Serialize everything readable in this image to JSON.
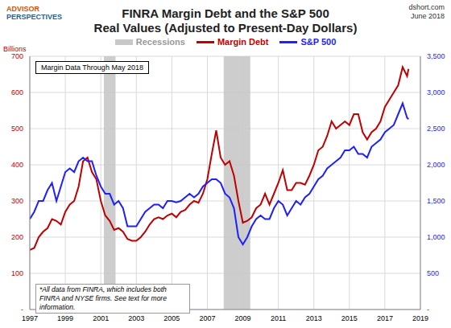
{
  "chart_data": {
    "type": "line",
    "title": "FINRA Margin Debt and the S&P 500",
    "subtitle": "Real Values (Adjusted to Present-Day Dollars)",
    "logo": [
      "ADVISOR",
      "PERSPECTIVES"
    ],
    "source": "dshort.com",
    "date": "June 2018",
    "y_label": "Billions",
    "annotations": [
      "Margin Data Through May 2018",
      "*All data from FINRA, which includes both FINRA and NYSE firms. See text for more information."
    ],
    "recession_label": "Recessions",
    "recessions": [
      [
        2001.17,
        2001.83
      ],
      [
        2007.92,
        2009.42
      ]
    ],
    "x": [
      1997,
      1997.25,
      1997.5,
      1997.75,
      1998,
      1998.25,
      1998.5,
      1998.75,
      1999,
      1999.25,
      1999.5,
      1999.75,
      2000,
      2000.25,
      2000.5,
      2000.75,
      2001,
      2001.25,
      2001.5,
      2001.75,
      2002,
      2002.25,
      2002.5,
      2002.75,
      2003,
      2003.25,
      2003.5,
      2003.75,
      2004,
      2004.25,
      2004.5,
      2004.75,
      2005,
      2005.25,
      2005.5,
      2005.75,
      2006,
      2006.25,
      2006.5,
      2006.75,
      2007,
      2007.25,
      2007.5,
      2007.75,
      2008,
      2008.25,
      2008.5,
      2008.75,
      2009,
      2009.25,
      2009.5,
      2009.75,
      2010,
      2010.25,
      2010.5,
      2010.75,
      2011,
      2011.25,
      2011.5,
      2011.75,
      2012,
      2012.25,
      2012.5,
      2012.75,
      2013,
      2013.25,
      2013.5,
      2013.75,
      2014,
      2014.25,
      2014.5,
      2014.75,
      2015,
      2015.25,
      2015.5,
      2015.75,
      2016,
      2016.25,
      2016.5,
      2016.75,
      2017,
      2017.25,
      2017.5,
      2017.75,
      2018,
      2018.25,
      2018.33
    ],
    "series": [
      {
        "name": "Margin Debt",
        "color": "#c00000",
        "values": [
          165,
          170,
          200,
          215,
          225,
          250,
          245,
          235,
          270,
          290,
          300,
          340,
          410,
          420,
          380,
          360,
          300,
          260,
          245,
          220,
          225,
          215,
          195,
          190,
          190,
          200,
          215,
          235,
          250,
          255,
          250,
          260,
          265,
          255,
          270,
          275,
          290,
          300,
          295,
          320,
          360,
          430,
          495,
          420,
          400,
          410,
          370,
          300,
          240,
          245,
          255,
          280,
          290,
          320,
          290,
          320,
          350,
          385,
          330,
          330,
          350,
          350,
          345,
          370,
          400,
          440,
          450,
          480,
          520,
          500,
          510,
          520,
          510,
          540,
          540,
          490,
          470,
          490,
          500,
          520,
          560,
          580,
          600,
          620,
          670,
          645,
          665
        ]
      },
      {
        "name": "S&P 500",
        "color": "#1f1fff",
        "axis": "y2",
        "values": [
          1250,
          1350,
          1500,
          1500,
          1650,
          1750,
          1500,
          1700,
          1900,
          1950,
          1900,
          2050,
          2100,
          2050,
          2050,
          1850,
          1700,
          1600,
          1600,
          1450,
          1500,
          1400,
          1150,
          1150,
          1150,
          1250,
          1350,
          1400,
          1450,
          1450,
          1400,
          1500,
          1500,
          1480,
          1500,
          1550,
          1600,
          1550,
          1600,
          1700,
          1750,
          1800,
          1800,
          1750,
          1600,
          1550,
          1400,
          1000,
          900,
          1000,
          1150,
          1250,
          1300,
          1250,
          1250,
          1400,
          1500,
          1450,
          1300,
          1400,
          1500,
          1450,
          1550,
          1600,
          1700,
          1800,
          1850,
          1950,
          2000,
          2050,
          2100,
          2200,
          2200,
          2250,
          2150,
          2150,
          2100,
          2250,
          2300,
          2350,
          2450,
          2500,
          2550,
          2700,
          2850,
          2650,
          2630
        ]
      }
    ],
    "xlim": [
      1997,
      2019
    ],
    "xticks": [
      1997,
      1999,
      2001,
      2003,
      2005,
      2007,
      2009,
      2011,
      2013,
      2015,
      2017,
      2019
    ],
    "ylim": [
      0,
      700
    ],
    "yticks": [
      {
        "value": 0,
        "label": "-"
      },
      100,
      200,
      300,
      400,
      500,
      600,
      700
    ],
    "y2lim": [
      0,
      3500
    ],
    "y2ticks": [
      {
        "value": 0,
        "label": "-"
      },
      500,
      {
        "value": 1000,
        "label": "1,000"
      },
      {
        "value": 1500,
        "label": "1,500"
      },
      {
        "value": 2000,
        "label": "2,000"
      },
      {
        "value": 2500,
        "label": "2,500"
      },
      {
        "value": 3000,
        "label": "3,000"
      },
      {
        "value": 3500,
        "label": "3,500"
      }
    ],
    "grid": true
  }
}
